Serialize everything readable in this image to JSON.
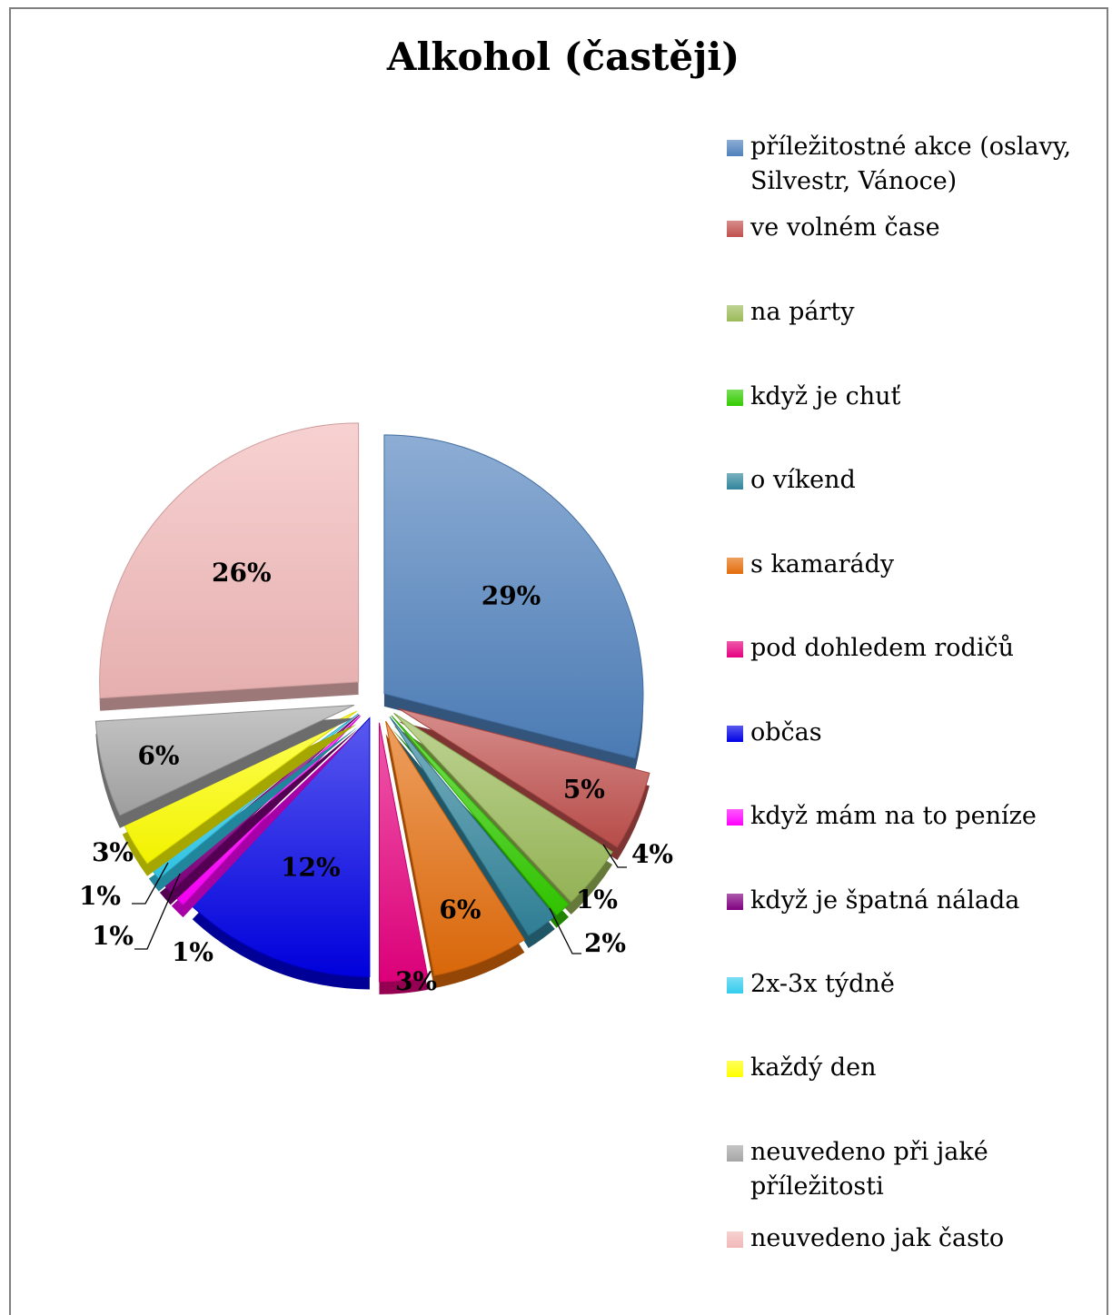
{
  "chart_data": {
    "type": "pie",
    "title": "Alkohol (častěji)",
    "legend_position": "right",
    "slices": [
      {
        "label": "příležitostné akce (oslavy, Silvestr, Vánoce)",
        "value": 29,
        "value_label": "29%",
        "color": "#4f81bd"
      },
      {
        "label": "ve volném čase",
        "value": 5,
        "value_label": "5%",
        "color": "#c0504d"
      },
      {
        "label": "na párty",
        "value": 4,
        "value_label": "4%",
        "color": "#9bbb59"
      },
      {
        "label": "když je chuť",
        "value": 1,
        "value_label": "1%",
        "color": "#33cc00"
      },
      {
        "label": "o víkend",
        "value": 2,
        "value_label": "2%",
        "color": "#31859c"
      },
      {
        "label": "s kamarády",
        "value": 6,
        "value_label": "6%",
        "color": "#e46c0a"
      },
      {
        "label": "pod dohledem rodičů",
        "value": 3,
        "value_label": "3%",
        "color": "#e6007e"
      },
      {
        "label": "občas",
        "value": 12,
        "value_label": "12%",
        "color": "#0000e6"
      },
      {
        "label": "když mám na to peníze",
        "value": 1,
        "value_label": "1%",
        "color": "#ff00ff"
      },
      {
        "label": "když je špatná nálada",
        "value": 1,
        "value_label": "1%",
        "color": "#7f007f"
      },
      {
        "label": "2x-3x týdně",
        "value": 1,
        "value_label": "1%",
        "color": "#33ccee"
      },
      {
        "label": "každý den",
        "value": 3,
        "value_label": "3%",
        "color": "#ffff00"
      },
      {
        "label": "neuvedeno při jaké příležitosti",
        "value": 6,
        "value_label": "6%",
        "color": "#a6a6a6"
      },
      {
        "label": "neuvedeno jak často",
        "value": 26,
        "value_label": "26%",
        "color": "#f2b8b8"
      }
    ]
  }
}
